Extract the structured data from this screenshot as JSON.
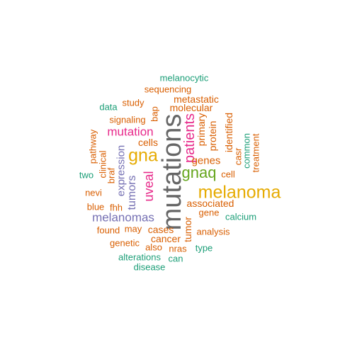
{
  "palette": {
    "orange": "#d95f02",
    "teal": "#1b9e77",
    "purple": "#7570b3",
    "magenta": "#e7298a",
    "gold": "#e6ab02",
    "green": "#66a61e",
    "gray": "#666666"
  },
  "words": [
    {
      "text": "mutations",
      "color": "gray",
      "vertical": true
    },
    {
      "text": "melanoma",
      "color": "gold",
      "vertical": false
    },
    {
      "text": "gna",
      "color": "gold",
      "vertical": false
    },
    {
      "text": "gnaq",
      "color": "green",
      "vertical": false
    },
    {
      "text": "patients",
      "color": "magenta",
      "vertical": true
    },
    {
      "text": "uveal",
      "color": "magenta",
      "vertical": true
    },
    {
      "text": "mutation",
      "color": "magenta",
      "vertical": false
    },
    {
      "text": "melanomas",
      "color": "purple",
      "vertical": false
    },
    {
      "text": "tumors",
      "color": "purple",
      "vertical": true
    },
    {
      "text": "expression",
      "color": "purple",
      "vertical": true
    },
    {
      "text": "genes",
      "color": "orange",
      "vertical": false
    },
    {
      "text": "associated",
      "color": "orange",
      "vertical": false
    },
    {
      "text": "molecular",
      "color": "orange",
      "vertical": false
    },
    {
      "text": "metastatic",
      "color": "orange",
      "vertical": false
    },
    {
      "text": "sequencing",
      "color": "orange",
      "vertical": false
    },
    {
      "text": "melanocytic",
      "color": "teal",
      "vertical": false
    },
    {
      "text": "study",
      "color": "orange",
      "vertical": false
    },
    {
      "text": "data",
      "color": "teal",
      "vertical": false
    },
    {
      "text": "bap",
      "color": "orange",
      "vertical": true
    },
    {
      "text": "signaling",
      "color": "orange",
      "vertical": false
    },
    {
      "text": "cells",
      "color": "orange",
      "vertical": false
    },
    {
      "text": "pathway",
      "color": "orange",
      "vertical": true
    },
    {
      "text": "clinical",
      "color": "orange",
      "vertical": true
    },
    {
      "text": "braf",
      "color": "orange",
      "vertical": true
    },
    {
      "text": "two",
      "color": "teal",
      "vertical": false
    },
    {
      "text": "nevi",
      "color": "orange",
      "vertical": false
    },
    {
      "text": "blue",
      "color": "orange",
      "vertical": false
    },
    {
      "text": "fhh",
      "color": "orange",
      "vertical": false
    },
    {
      "text": "found",
      "color": "orange",
      "vertical": false
    },
    {
      "text": "may",
      "color": "orange",
      "vertical": false
    },
    {
      "text": "cases",
      "color": "orange",
      "vertical": false
    },
    {
      "text": "cancer",
      "color": "orange",
      "vertical": false
    },
    {
      "text": "genetic",
      "color": "orange",
      "vertical": false
    },
    {
      "text": "also",
      "color": "orange",
      "vertical": false
    },
    {
      "text": "nras",
      "color": "orange",
      "vertical": false
    },
    {
      "text": "alterations",
      "color": "teal",
      "vertical": false
    },
    {
      "text": "can",
      "color": "teal",
      "vertical": false
    },
    {
      "text": "disease",
      "color": "teal",
      "vertical": false
    },
    {
      "text": "type",
      "color": "teal",
      "vertical": false
    },
    {
      "text": "analysis",
      "color": "orange",
      "vertical": false
    },
    {
      "text": "tumor",
      "color": "orange",
      "vertical": true
    },
    {
      "text": "gene",
      "color": "orange",
      "vertical": false
    },
    {
      "text": "calcium",
      "color": "teal",
      "vertical": false
    },
    {
      "text": "cell",
      "color": "orange",
      "vertical": false
    },
    {
      "text": "primary",
      "color": "orange",
      "vertical": true
    },
    {
      "text": "protein",
      "color": "orange",
      "vertical": true
    },
    {
      "text": "identified",
      "color": "orange",
      "vertical": true
    },
    {
      "text": "casr",
      "color": "orange",
      "vertical": true
    },
    {
      "text": "common",
      "color": "teal",
      "vertical": true
    },
    {
      "text": "treatment",
      "color": "orange",
      "vertical": true
    }
  ]
}
